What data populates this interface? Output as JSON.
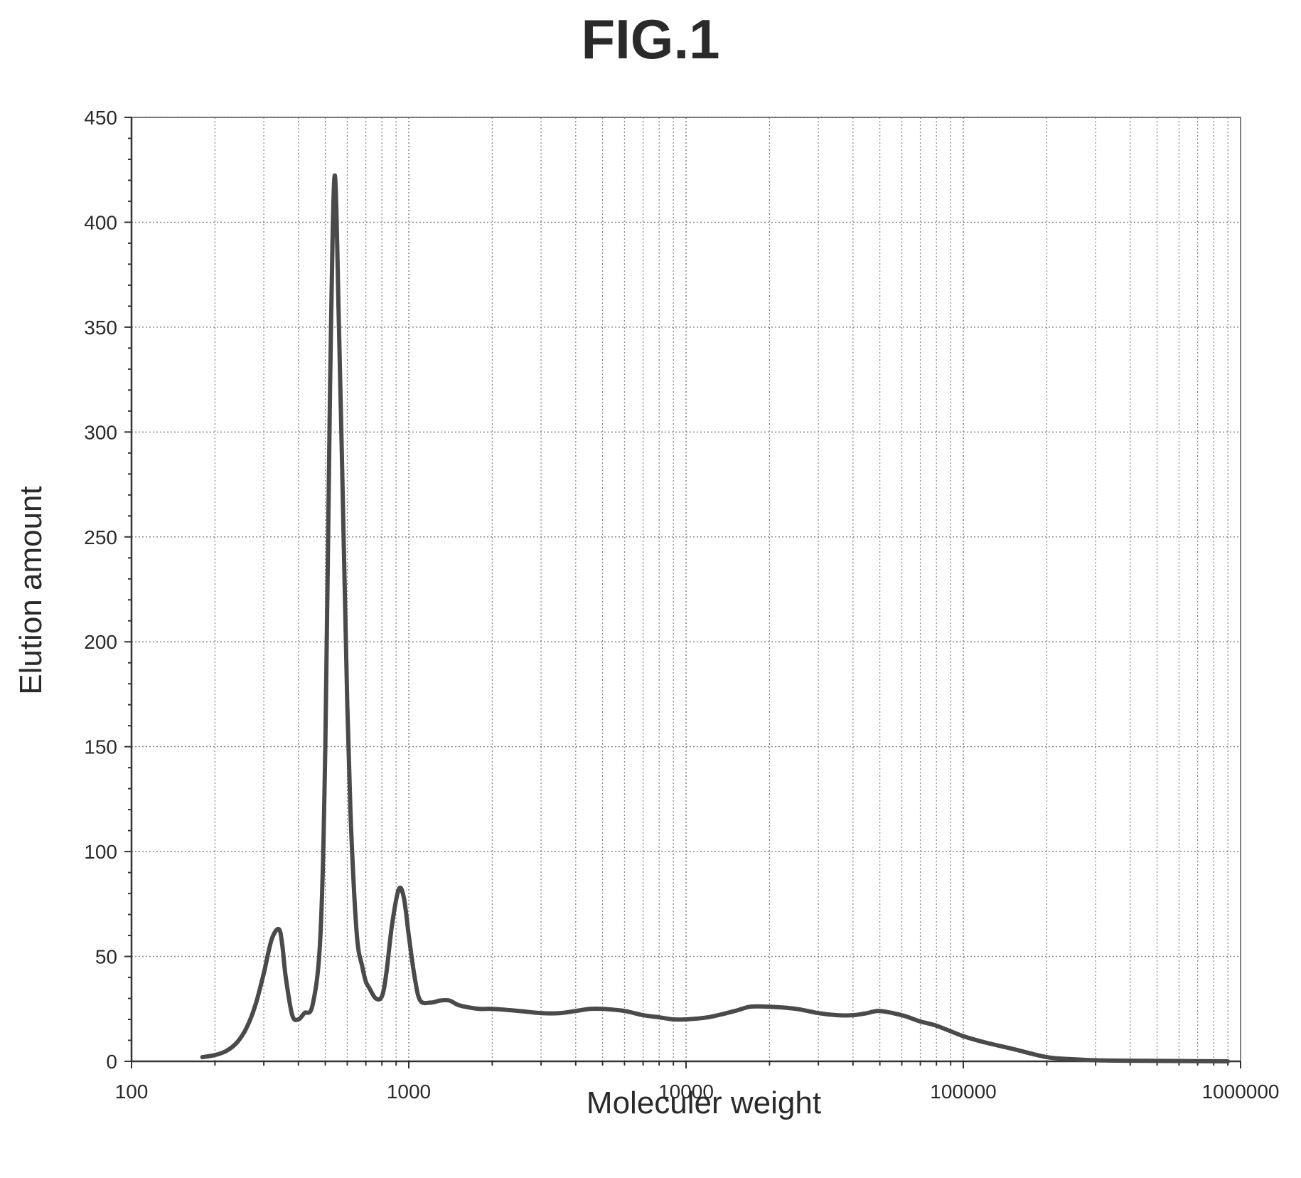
{
  "figure_label": "FIG.1",
  "chart_data": {
    "type": "line",
    "title": "FIG.1",
    "xlabel": "Moleculer weight",
    "ylabel": "Elution amount",
    "x_scale": "log",
    "xlim": [
      100,
      1000000
    ],
    "ylim": [
      0,
      450
    ],
    "x_ticks": [
      100,
      1000,
      10000,
      100000,
      1000000
    ],
    "x_tick_labels": [
      "100",
      "1000",
      "10000",
      "100000",
      "1000000"
    ],
    "y_ticks": [
      0,
      50,
      100,
      150,
      200,
      250,
      300,
      350,
      400,
      450
    ],
    "y_tick_labels": [
      "0",
      "50",
      "100",
      "150",
      "200",
      "250",
      "300",
      "350",
      "400",
      "450"
    ],
    "grid": true,
    "legend": "none",
    "line_color": "#4a4a4a",
    "series": [
      {
        "x": [
          180,
          200,
          220,
          240,
          260,
          280,
          300,
          320,
          340,
          350,
          360,
          380,
          400,
          420,
          450,
          480,
          500,
          520,
          540,
          560,
          580,
          600,
          620,
          650,
          680,
          700,
          720,
          760,
          800,
          830,
          870,
          920,
          960,
          1000,
          1050,
          1100,
          1200,
          1300,
          1400,
          1500,
          1600,
          1800,
          2000,
          2500,
          3000,
          3500,
          4000,
          4500,
          5000,
          6000,
          7000,
          8000,
          9000,
          10000,
          12000,
          15000,
          17000,
          20000,
          25000,
          30000,
          35000,
          40000,
          45000,
          50000,
          60000,
          70000,
          80000,
          100000,
          120000,
          150000,
          200000,
          250000,
          300000,
          400000,
          500000,
          700000,
          900000
        ],
        "y": [
          2,
          3,
          5,
          9,
          16,
          27,
          42,
          58,
          63,
          55,
          40,
          22,
          20,
          23,
          27,
          60,
          150,
          320,
          422,
          350,
          260,
          170,
          110,
          60,
          45,
          38,
          35,
          30,
          31,
          42,
          65,
          82,
          78,
          60,
          40,
          29,
          28,
          29,
          29,
          27,
          26,
          25,
          25,
          24,
          23,
          23,
          24,
          25,
          25,
          24,
          22,
          21,
          20,
          20,
          21,
          24,
          26,
          26,
          25,
          23,
          22,
          22,
          23,
          24,
          22,
          19,
          17,
          12,
          9,
          6,
          2,
          1,
          0.5,
          0.3,
          0.2,
          0.1,
          0
        ]
      }
    ]
  }
}
